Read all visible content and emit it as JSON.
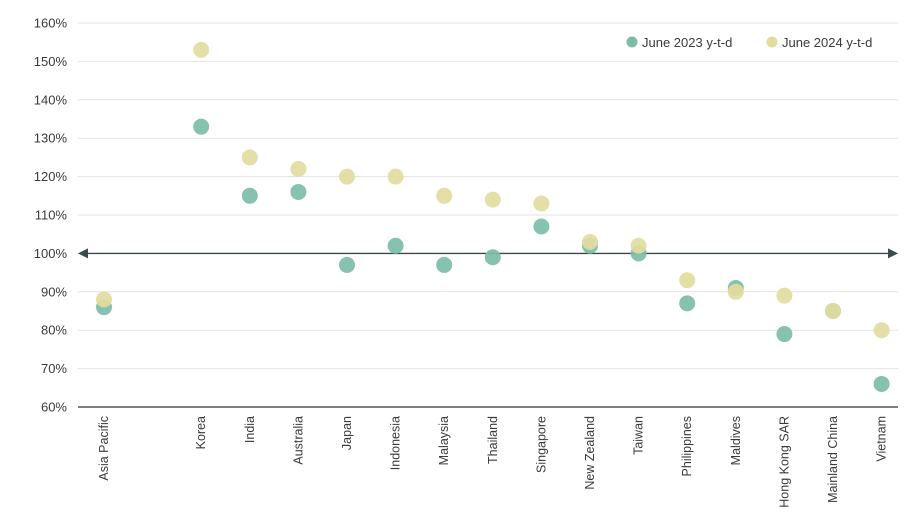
{
  "chart_data": {
    "type": "scatter",
    "categories": [
      "Asia Pacific",
      "Korea",
      "India",
      "Australia",
      "Japan",
      "Indonesia",
      "Malaysia",
      "Thailand",
      "Singapore",
      "New Zealand",
      "Taiwan",
      "Philippines",
      "Maldives",
      "Hong Kong SAR",
      "Mainland China",
      "Vietnam"
    ],
    "category_slots": [
      0,
      2,
      3,
      4,
      5,
      6,
      7,
      8,
      9,
      10,
      11,
      12,
      13,
      14,
      15,
      16
    ],
    "series": [
      {
        "name": "June 2023 y-t-d",
        "color": "#7dbca9",
        "values": [
          86,
          133,
          115,
          116,
          97,
          102,
          97,
          99,
          107,
          102,
          100,
          87,
          91,
          79,
          85,
          66
        ]
      },
      {
        "name": "June 2024 y-t-d",
        "color": "#e1dc9f",
        "values": [
          88,
          153,
          125,
          122,
          120,
          120,
          115,
          114,
          113,
          103,
          102,
          93,
          90,
          89,
          85,
          80
        ]
      }
    ],
    "yticks": [
      "60%",
      "70%",
      "80%",
      "90%",
      "100%",
      "110%",
      "120%",
      "130%",
      "140%",
      "150%",
      "160%"
    ],
    "ylim": [
      60,
      160
    ],
    "reference_line": 100,
    "grid": true,
    "legend_position": "top-right",
    "title": "",
    "xlabel": "",
    "ylabel": ""
  }
}
